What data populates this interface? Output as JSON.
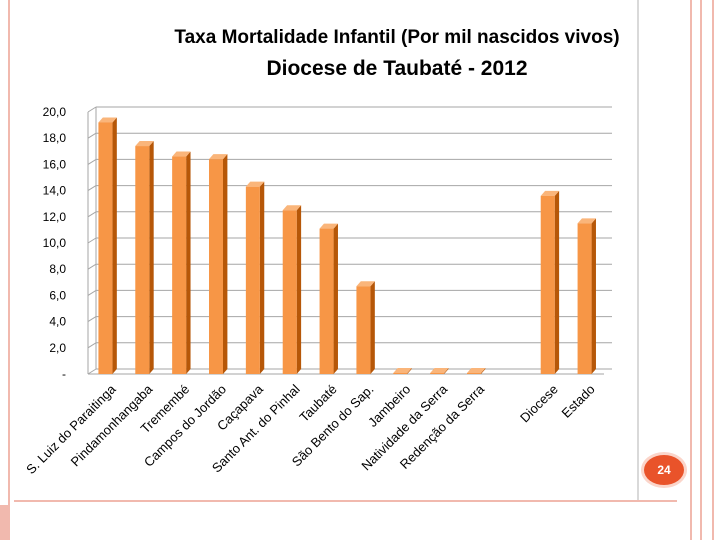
{
  "slide": {
    "page_number": "24"
  },
  "colors": {
    "bar": "#f79646",
    "bar_side": "#b65708",
    "bar_top": "#fab57a",
    "grid": "#a6a6a6",
    "accent": "#e9532a"
  },
  "chart_data": {
    "type": "bar",
    "title": "Taxa Mortalidade Infantil (Por mil nascidos vivos)",
    "subtitle": "Diocese de Taubaté - 2012",
    "categories": [
      "S. Luiz do Paraitinga",
      "Pindamonhangaba",
      "Tremembé",
      "Campos do Jordão",
      "Caçapava",
      "Santo Ant. do Pinhal",
      "Taubaté",
      "São Bento do Sap.",
      "Jambeiro",
      "Natividade da Serra",
      "Redenção da Serra",
      "",
      "Diocese",
      "Estado"
    ],
    "values": [
      19.2,
      17.4,
      16.6,
      16.4,
      14.3,
      12.5,
      11.1,
      6.7,
      0,
      0,
      0,
      null,
      13.6,
      11.5
    ],
    "ylim": [
      0,
      20
    ],
    "yticks": [
      "-",
      "2,0",
      "4,0",
      "6,0",
      "8,0",
      "10,0",
      "12,0",
      "14,0",
      "16,0",
      "18,0",
      "20,0"
    ],
    "grid": true,
    "legend": "none"
  }
}
